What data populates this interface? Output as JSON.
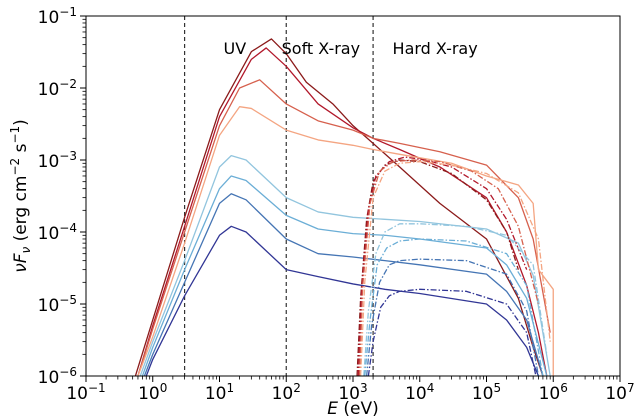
{
  "chart_data": {
    "type": "line",
    "title": "",
    "xlabel": "E (eV)",
    "ylabel": "νFν (erg cm⁻² s⁻¹)",
    "xscale": "log",
    "yscale": "log",
    "xlim": [
      0.1,
      10000000
    ],
    "ylim": [
      1e-06,
      0.1
    ],
    "grid": false,
    "x_ticks": [
      {
        "value": 0.1,
        "base": "10",
        "exp": "−1"
      },
      {
        "value": 1,
        "base": "10",
        "exp": "0"
      },
      {
        "value": 10,
        "base": "10",
        "exp": "1"
      },
      {
        "value": 100,
        "base": "10",
        "exp": "2"
      },
      {
        "value": 1000,
        "base": "10",
        "exp": "3"
      },
      {
        "value": 10000,
        "base": "10",
        "exp": "4"
      },
      {
        "value": 100000,
        "base": "10",
        "exp": "5"
      },
      {
        "value": 1000000,
        "base": "10",
        "exp": "6"
      },
      {
        "value": 10000000,
        "base": "10",
        "exp": "7"
      }
    ],
    "y_ticks": [
      {
        "value": 1e-06,
        "base": "10",
        "exp": "−6"
      },
      {
        "value": 1e-05,
        "base": "10",
        "exp": "−5"
      },
      {
        "value": 0.0001,
        "base": "10",
        "exp": "−4"
      },
      {
        "value": 0.001,
        "base": "10",
        "exp": "−3"
      },
      {
        "value": 0.01,
        "base": "10",
        "exp": "−2"
      },
      {
        "value": 0.1,
        "base": "10",
        "exp": "−1"
      }
    ],
    "region_boundaries": [
      3,
      100,
      2000
    ],
    "region_labels": [
      {
        "text": "UV",
        "x": 17,
        "y": 0.035
      },
      {
        "text": "Soft X-ray",
        "x": 330,
        "y": 0.035
      },
      {
        "text": "Hard X-ray",
        "x": 17000,
        "y": 0.035
      }
    ],
    "series": [
      {
        "color": "#8b1a1a",
        "style": "solid",
        "x": [
          0.55,
          1,
          3,
          10,
          30,
          60,
          100,
          200,
          500,
          1000,
          2000,
          5000,
          20000,
          100000,
          300000,
          500000,
          700000
        ],
        "y": [
          1e-06,
          6e-06,
          0.00016,
          0.005,
          0.032,
          0.048,
          0.03,
          0.012,
          0.006,
          0.003,
          0.0017,
          0.0008,
          0.00025,
          8e-05,
          1.2e-05,
          2.5e-06,
          1e-06
        ]
      },
      {
        "color": "#b2182b",
        "style": "solid",
        "x": [
          0.6,
          1,
          3,
          10,
          30,
          50,
          100,
          300,
          1000,
          2000,
          5000,
          20000,
          100000,
          200000,
          400000,
          600000,
          800000
        ],
        "y": [
          1e-06,
          5e-06,
          0.00012,
          0.004,
          0.025,
          0.036,
          0.02,
          0.006,
          0.0028,
          0.002,
          0.0014,
          0.0008,
          0.0003,
          0.0001,
          1.8e-05,
          4e-06,
          1e-06
        ]
      },
      {
        "color": "#d6604d",
        "style": "solid",
        "x": [
          0.6,
          1,
          3,
          10,
          20,
          40,
          100,
          300,
          1000,
          2000,
          5000,
          20000,
          100000,
          300000,
          500000,
          900000
        ],
        "y": [
          1e-06,
          4.5e-06,
          0.0001,
          0.003,
          0.01,
          0.013,
          0.006,
          0.0035,
          0.0026,
          0.002,
          0.0017,
          0.0013,
          0.00085,
          0.0003,
          8e-05,
          4e-06
        ]
      },
      {
        "color": "#f4a582",
        "style": "solid",
        "x": [
          0.6,
          1,
          3,
          10,
          20,
          30,
          100,
          300,
          1000,
          2000,
          5000,
          30000,
          100000,
          300000,
          500000,
          600000,
          1000000,
          1000000
        ],
        "y": [
          1e-06,
          3.5e-06,
          7e-05,
          0.0022,
          0.0055,
          0.0052,
          0.0026,
          0.0019,
          0.0016,
          0.0014,
          0.0012,
          0.0009,
          0.0006,
          0.00045,
          0.00025,
          3e-05,
          1.6e-05,
          1e-06
        ]
      },
      {
        "color": "#92c5de",
        "style": "solid",
        "x": [
          0.65,
          1,
          3,
          10,
          15,
          25,
          100,
          300,
          1000,
          3000,
          10000,
          100000,
          300000,
          500000,
          900000
        ],
        "y": [
          1e-06,
          3e-06,
          4e-05,
          0.0008,
          0.00115,
          0.001,
          0.0003,
          0.00019,
          0.00016,
          0.00015,
          0.00014,
          0.00011,
          7e-05,
          2.5e-05,
          1e-06
        ]
      },
      {
        "color": "#6baed6",
        "style": "solid",
        "x": [
          0.7,
          1,
          3,
          10,
          15,
          25,
          100,
          300,
          1000,
          3000,
          10000,
          100000,
          200000,
          400000,
          800000
        ],
        "y": [
          1e-06,
          2.5e-06,
          3e-05,
          0.0004,
          0.0006,
          0.00052,
          0.00017,
          0.00011,
          9.5e-05,
          9e-05,
          8e-05,
          6e-05,
          3.5e-05,
          1.2e-05,
          1e-06
        ]
      },
      {
        "color": "#4575b4",
        "style": "solid",
        "x": [
          0.75,
          1,
          3,
          10,
          15,
          25,
          100,
          300,
          1000,
          3000,
          10000,
          100000,
          200000,
          400000,
          700000
        ],
        "y": [
          1e-06,
          2e-06,
          2e-05,
          0.00025,
          0.00034,
          0.00028,
          8e-05,
          5e-05,
          4.5e-05,
          4e-05,
          3.5e-05,
          2.6e-05,
          1.5e-05,
          6e-06,
          1e-06
        ]
      },
      {
        "color": "#313695",
        "style": "solid",
        "x": [
          0.8,
          1,
          3,
          10,
          15,
          25,
          100,
          300,
          1000,
          3000,
          10000,
          100000,
          200000,
          400000,
          600000
        ],
        "y": [
          1e-06,
          1.7e-06,
          1.3e-05,
          9e-05,
          0.00012,
          0.0001,
          3e-05,
          2.4e-05,
          1.9e-05,
          1.6e-05,
          1.4e-05,
          1e-05,
          6e-06,
          2.5e-06,
          1e-06
        ]
      },
      {
        "color": "#8b1a1a",
        "style": "dashdot",
        "x": [
          1150,
          1300,
          1600,
          2000,
          3000,
          5000,
          10000,
          30000,
          100000,
          200000,
          300000
        ],
        "y": [
          1e-06,
          1.2e-05,
          0.00015,
          0.0005,
          0.00085,
          0.001,
          0.00095,
          0.00065,
          0.00028,
          0.0001,
          3e-05
        ]
      },
      {
        "color": "#b2182b",
        "style": "dashdot",
        "x": [
          1200,
          1350,
          1700,
          2200,
          3500,
          6000,
          12000,
          30000,
          100000,
          200000,
          400000
        ],
        "y": [
          1e-06,
          1.5e-05,
          0.0002,
          0.0006,
          0.00095,
          0.0011,
          0.001,
          0.0008,
          0.0004,
          0.00015,
          3e-05
        ]
      },
      {
        "color": "#d6604d",
        "style": "dashdot",
        "x": [
          1250,
          1400,
          1800,
          2500,
          4000,
          8000,
          20000,
          60000,
          150000,
          300000,
          600000
        ],
        "y": [
          1e-06,
          1.8e-05,
          0.00025,
          0.0007,
          0.00095,
          0.001,
          0.00095,
          0.0007,
          0.0004,
          0.00012,
          1e-05
        ]
      },
      {
        "color": "#f4a582",
        "style": "dashdot",
        "x": [
          1300,
          1500,
          2000,
          3000,
          5000,
          10000,
          30000,
          100000,
          300000,
          600000,
          900000
        ],
        "y": [
          1e-06,
          2e-05,
          0.0003,
          0.0007,
          0.0009,
          0.00095,
          0.00085,
          0.00065,
          0.00035,
          8e-05,
          3e-06
        ]
      },
      {
        "color": "#92c5de",
        "style": "dashdot",
        "x": [
          1450,
          1700,
          2200,
          3000,
          5000,
          10000,
          50000,
          200000,
          500000,
          800000
        ],
        "y": [
          1e-06,
          8e-06,
          5e-05,
          0.0001,
          0.00013,
          0.00013,
          0.00012,
          9e-05,
          3.5e-05,
          2e-06
        ]
      },
      {
        "color": "#6baed6",
        "style": "dashdot",
        "x": [
          1500,
          1800,
          2300,
          3200,
          5000,
          10000,
          50000,
          200000,
          400000,
          700000
        ],
        "y": [
          1e-06,
          6e-06,
          3.5e-05,
          6e-05,
          7.5e-05,
          8e-05,
          7.5e-05,
          5e-05,
          1.8e-05,
          1e-06
        ]
      },
      {
        "color": "#4575b4",
        "style": "dashdot",
        "x": [
          1600,
          1900,
          2500,
          3500,
          5000,
          10000,
          50000,
          200000,
          400000,
          600000
        ],
        "y": [
          1e-06,
          5e-06,
          2e-05,
          3.5e-05,
          4e-05,
          4.2e-05,
          4e-05,
          2.6e-05,
          8e-06,
          1e-06
        ]
      },
      {
        "color": "#313695",
        "style": "dashdot",
        "x": [
          1700,
          2000,
          2600,
          3500,
          5000,
          10000,
          50000,
          200000,
          400000,
          550000
        ],
        "y": [
          1e-06,
          3e-06,
          9e-06,
          1.3e-05,
          1.5e-05,
          1.6e-05,
          1.5e-05,
          1e-05,
          4e-06,
          1e-06
        ]
      }
    ]
  }
}
